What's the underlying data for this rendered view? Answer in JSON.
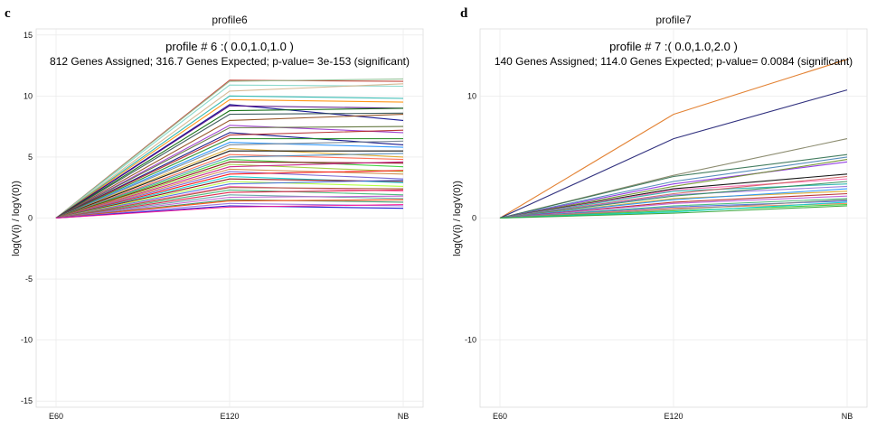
{
  "panels": [
    {
      "letter": "c",
      "title": "profile6",
      "profile_text": "profile # 6 :( 0.0,1.0,1.0 )",
      "stats_text": "812 Genes Assigned; 316.7 Genes Expected; p-value= 3e-153 (significant)"
    },
    {
      "letter": "d",
      "title": "profile7",
      "profile_text": "profile # 7 :( 0.0,1.0,2.0 )",
      "stats_text": "140 Genes Assigned; 114.0 Genes Expected; p-value= 0.0084 (significant)"
    }
  ],
  "chart_data": [
    {
      "type": "line",
      "title": "profile6",
      "ylabel": "log(V(i) / logV(0))",
      "categories": [
        "E60",
        "E120",
        "NB"
      ],
      "ylim": [
        -15.5,
        15.5
      ],
      "yticks": [
        -15,
        -10,
        -5,
        0,
        5,
        10,
        15
      ],
      "grid": true,
      "legend": "none",
      "series": [
        {
          "values": [
            0,
            11.3,
            11.2
          ],
          "color": "#c0392b"
        },
        {
          "values": [
            0,
            11.2,
            11.4
          ],
          "color": "#8fbc8f"
        },
        {
          "values": [
            0,
            10.9,
            10.8
          ],
          "color": "#7fd6c8"
        },
        {
          "values": [
            0,
            10.4,
            11.0
          ],
          "color": "#d2b48c"
        },
        {
          "values": [
            0,
            10.0,
            9.8
          ],
          "color": "#20b2aa"
        },
        {
          "values": [
            0,
            9.7,
            9.5
          ],
          "color": "#ff8c00"
        },
        {
          "values": [
            0,
            9.3,
            8.0
          ],
          "color": "#00008b"
        },
        {
          "values": [
            0,
            9.2,
            9.0
          ],
          "color": "#4b0082"
        },
        {
          "values": [
            0,
            8.8,
            9.0
          ],
          "color": "#006400"
        },
        {
          "values": [
            0,
            8.5,
            8.6
          ],
          "color": "#2f4f4f"
        },
        {
          "values": [
            0,
            8.0,
            8.5
          ],
          "color": "#8b4513"
        },
        {
          "values": [
            0,
            7.6,
            7.0
          ],
          "color": "#9932cc"
        },
        {
          "values": [
            0,
            7.4,
            7.5
          ],
          "color": "#556b2f"
        },
        {
          "values": [
            0,
            7.0,
            6.0
          ],
          "color": "#000080"
        },
        {
          "values": [
            0,
            6.8,
            7.2
          ],
          "color": "#b22222"
        },
        {
          "values": [
            0,
            6.5,
            6.5
          ],
          "color": "#228b22"
        },
        {
          "values": [
            0,
            6.2,
            5.8
          ],
          "color": "#1e90ff"
        },
        {
          "values": [
            0,
            6.0,
            6.3
          ],
          "color": "#708090"
        },
        {
          "values": [
            0,
            5.7,
            5.0
          ],
          "color": "#daa520"
        },
        {
          "values": [
            0,
            5.5,
            5.5
          ],
          "color": "#000000"
        },
        {
          "values": [
            0,
            5.2,
            4.8
          ],
          "color": "#ff6347"
        },
        {
          "values": [
            0,
            5.0,
            5.3
          ],
          "color": "#4682b4"
        },
        {
          "values": [
            0,
            4.8,
            4.2
          ],
          "color": "#32cd32"
        },
        {
          "values": [
            0,
            4.6,
            4.5
          ],
          "color": "#800000"
        },
        {
          "values": [
            0,
            4.4,
            3.8
          ],
          "color": "#9acd32"
        },
        {
          "values": [
            0,
            4.2,
            4.6
          ],
          "color": "#c71585"
        },
        {
          "values": [
            0,
            4.0,
            3.6
          ],
          "color": "#cd853f"
        },
        {
          "values": [
            0,
            3.8,
            3.2
          ],
          "color": "#6a5acd"
        },
        {
          "values": [
            0,
            3.6,
            3.9
          ],
          "color": "#ff0000"
        },
        {
          "values": [
            0,
            3.4,
            2.9
          ],
          "color": "#00ced1"
        },
        {
          "values": [
            0,
            3.2,
            3.0
          ],
          "color": "#8b0000"
        },
        {
          "values": [
            0,
            3.0,
            2.6
          ],
          "color": "#adff2f"
        },
        {
          "values": [
            0,
            2.8,
            3.1
          ],
          "color": "#4169e1"
        },
        {
          "values": [
            0,
            2.6,
            2.2
          ],
          "color": "#ff69b4"
        },
        {
          "values": [
            0,
            2.5,
            2.4
          ],
          "color": "#a0522d"
        },
        {
          "values": [
            0,
            2.3,
            1.9
          ],
          "color": "#3cb371"
        },
        {
          "values": [
            0,
            2.1,
            2.3
          ],
          "color": "#dc143c"
        },
        {
          "values": [
            0,
            1.9,
            1.6
          ],
          "color": "#5f9ea0"
        },
        {
          "values": [
            0,
            1.7,
            1.8
          ],
          "color": "#ba55d3"
        },
        {
          "values": [
            0,
            1.5,
            1.3
          ],
          "color": "#2e8b57"
        },
        {
          "values": [
            0,
            1.4,
            1.5
          ],
          "color": "#ff4500"
        },
        {
          "values": [
            0,
            1.2,
            1.0
          ],
          "color": "#9370db"
        },
        {
          "values": [
            0,
            1.0,
            0.8
          ],
          "color": "#0000cd"
        },
        {
          "values": [
            0,
            0.9,
            1.1
          ],
          "color": "#ff1493"
        }
      ]
    },
    {
      "type": "line",
      "title": "profile7",
      "ylabel": "log(V(i) / logV(0))",
      "categories": [
        "E60",
        "E120",
        "NB"
      ],
      "ylim": [
        -15.5,
        15.5
      ],
      "yticks": [
        -10,
        0,
        10
      ],
      "grid": true,
      "legend": "none",
      "series": [
        {
          "values": [
            0,
            8.5,
            13.0
          ],
          "color": "#e0761f"
        },
        {
          "values": [
            0,
            6.5,
            10.5
          ],
          "color": "#191970"
        },
        {
          "values": [
            0,
            3.5,
            6.5
          ],
          "color": "#808060"
        },
        {
          "values": [
            0,
            3.4,
            5.2
          ],
          "color": "#2f6f4f"
        },
        {
          "values": [
            0,
            3.0,
            5.0
          ],
          "color": "#4682b4"
        },
        {
          "values": [
            0,
            2.8,
            4.6
          ],
          "color": "#8a2be2"
        },
        {
          "values": [
            0,
            2.6,
            4.8
          ],
          "color": "#6b8e23"
        },
        {
          "values": [
            0,
            2.4,
            3.6
          ],
          "color": "#000000"
        },
        {
          "values": [
            0,
            2.3,
            3.2
          ],
          "color": "#ff69b4"
        },
        {
          "values": [
            0,
            2.2,
            2.8
          ],
          "color": "#20b2aa"
        },
        {
          "values": [
            0,
            2.0,
            3.4
          ],
          "color": "#cd5c5c"
        },
        {
          "values": [
            0,
            1.9,
            2.6
          ],
          "color": "#9370db"
        },
        {
          "values": [
            0,
            1.8,
            3.0
          ],
          "color": "#2e8b57"
        },
        {
          "values": [
            0,
            1.6,
            2.2
          ],
          "color": "#daa520"
        },
        {
          "values": [
            0,
            1.5,
            2.4
          ],
          "color": "#1e90ff"
        },
        {
          "values": [
            0,
            1.3,
            2.0
          ],
          "color": "#b22222"
        },
        {
          "values": [
            0,
            1.2,
            1.8
          ],
          "color": "#ba55d3"
        },
        {
          "values": [
            0,
            1.0,
            1.6
          ],
          "color": "#3cb371"
        },
        {
          "values": [
            0,
            0.9,
            1.4
          ],
          "color": "#4169e1"
        },
        {
          "values": [
            0,
            0.8,
            1.2
          ],
          "color": "#ff7f50"
        },
        {
          "values": [
            0,
            0.7,
            1.5
          ],
          "color": "#808080"
        },
        {
          "values": [
            0,
            0.6,
            1.1
          ],
          "color": "#32cd32"
        },
        {
          "values": [
            0,
            0.5,
            1.3
          ],
          "color": "#00ced1"
        },
        {
          "values": [
            0,
            0.4,
            1.0
          ],
          "color": "#2ca02c"
        }
      ]
    }
  ]
}
